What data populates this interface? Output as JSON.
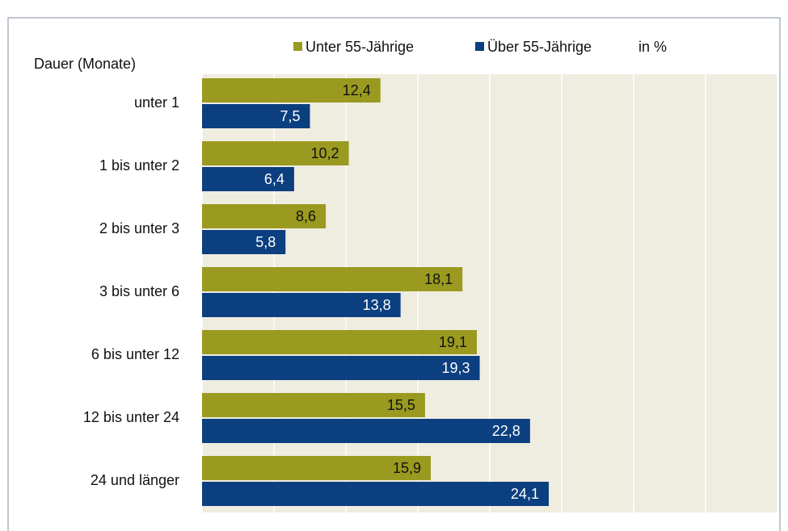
{
  "chart_data": {
    "type": "barh",
    "y_axis_label": "Dauer  (Monate)",
    "unit_label": "in %",
    "categories": [
      "unter  1",
      "1  bis unter  2",
      "2  bis unter  3",
      "3  bis unter  6",
      "6  bis unter 12",
      "12 bis unter 24",
      "24 und länger"
    ],
    "series": [
      {
        "name": "Unter 55-Jährige",
        "color": "#999a1f",
        "values": [
          12.4,
          10.2,
          8.6,
          18.1,
          19.1,
          15.5,
          15.9
        ],
        "value_labels": [
          "12,4",
          "10,2",
          "8,6",
          "18,1",
          "19,1",
          "15,5",
          "15,9"
        ]
      },
      {
        "name": "Über 55-Jährige",
        "color": "#0c3f80",
        "values": [
          7.5,
          6.4,
          5.8,
          13.8,
          19.3,
          22.8,
          24.1
        ],
        "value_labels": [
          "7,5",
          "6,4",
          "5,8",
          "13,8",
          "19,3",
          "22,8",
          "24,1"
        ]
      }
    ],
    "xlim": [
      0,
      40
    ],
    "xticks": [
      0,
      5,
      10,
      15,
      20,
      25,
      30,
      35,
      40
    ],
    "grid": true
  }
}
